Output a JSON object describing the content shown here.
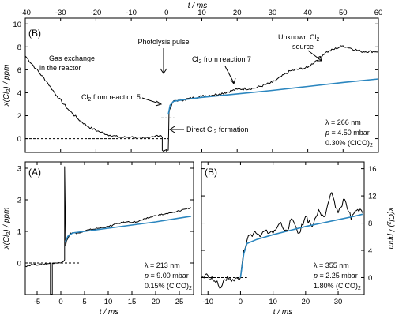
{
  "colors": {
    "measurement": "#000000",
    "fit": "#2b86bf"
  },
  "chart_data": [
    {
      "type": "line",
      "panel": "(B)",
      "xlabel": "t / ms",
      "ylabel": "x(Cl2) / ppm",
      "xlim": [
        -40,
        60
      ],
      "ylim": [
        -1.2,
        10.5
      ],
      "xticks": [
        -40,
        -30,
        -20,
        -10,
        0,
        10,
        20,
        30,
        40,
        50,
        60
      ],
      "yticks": [
        0,
        2,
        4,
        6,
        8,
        10
      ],
      "x_axis_position": "top",
      "conditions": [
        "λ = 266 nm",
        "p = 4.50 mbar",
        "0.30% (ClCO)2"
      ],
      "annotations": [
        "Photolysis pulse",
        "Gas exchange in the reactor",
        "Cl2 from reaction 5",
        "Cl2 from reaction 7",
        "Unknown Cl2 source",
        "Direct Cl2 formation"
      ],
      "series": [
        {
          "x": [
            -40,
            -37,
            -34,
            -31,
            -28,
            -25,
            -22,
            -19,
            -16,
            -13,
            -10,
            -7,
            -4,
            -2,
            -1.2,
            -1.2,
            0.5,
            0.7,
            1,
            2,
            5,
            10,
            15,
            20,
            25,
            30,
            35,
            40,
            45,
            50,
            55,
            60
          ],
          "values": [
            7.2,
            6.1,
            5.0,
            3.7,
            2.6,
            1.7,
            1.0,
            0.6,
            0.3,
            0.1,
            0.15,
            0.0,
            0.2,
            0.25,
            0.1,
            -1.0,
            -1.0,
            2.2,
            2.6,
            3.3,
            3.4,
            3.7,
            3.9,
            4.3,
            4.4,
            4.9,
            5.9,
            6.2,
            7.5,
            8.1,
            7.6,
            7.6
          ]
        },
        {
          "x": [
            0.5,
            1,
            2,
            5,
            10,
            20,
            30,
            40,
            50,
            60
          ],
          "values": [
            2.1,
            2.9,
            3.25,
            3.4,
            3.6,
            3.9,
            4.2,
            4.55,
            4.9,
            5.2
          ]
        }
      ],
      "reference_levels": [
        0,
        1.8
      ]
    },
    {
      "type": "line",
      "panel": "(A)",
      "xlabel": "t / ms",
      "ylabel": "x(Cl2) / ppm",
      "xlim": [
        -7.5,
        28
      ],
      "ylim": [
        -1.0,
        3.2
      ],
      "xticks": [
        -5,
        0,
        5,
        10,
        15,
        20,
        25
      ],
      "yticks": [
        0,
        1,
        2,
        3
      ],
      "conditions": [
        "λ = 213 nm",
        "p = 9.00 mbar",
        "0.15% (ClCO)2"
      ],
      "series": [
        {
          "x": [
            -7.5,
            -6,
            -4,
            -2.2,
            -2.2,
            -1.8,
            -1.8,
            -1,
            0,
            0.8,
            0.8,
            1.0,
            1.0,
            1.2,
            2,
            4,
            6,
            8,
            10,
            12,
            14,
            16,
            18,
            20,
            22,
            24,
            26,
            27.5
          ],
          "values": [
            -0.1,
            -0.05,
            -0.05,
            0.0,
            -1.0,
            -1.0,
            0.0,
            0.0,
            0.0,
            0.1,
            3.05,
            0.9,
            0.55,
            0.7,
            0.95,
            0.95,
            1.05,
            1.1,
            1.15,
            1.25,
            1.3,
            1.3,
            1.4,
            1.5,
            1.55,
            1.6,
            1.7,
            1.75
          ]
        },
        {
          "x": [
            0.9,
            1.5,
            2.5,
            5,
            10,
            15,
            20,
            25,
            27.5
          ],
          "values": [
            0.65,
            0.85,
            0.95,
            1.0,
            1.1,
            1.2,
            1.3,
            1.42,
            1.48
          ]
        }
      ],
      "reference_levels": [
        0
      ]
    },
    {
      "type": "line",
      "panel": "(B)",
      "xlabel": "t / ms",
      "ylabel": "x(Cl2) / ppm",
      "y_axis_position": "right",
      "xlim": [
        -12,
        38
      ],
      "ylim": [
        -2.5,
        17
      ],
      "xticks": [
        -10,
        0,
        10,
        20,
        30
      ],
      "yticks": [
        0,
        4,
        8,
        12,
        16
      ],
      "conditions": [
        "λ = 355 nm",
        "p = 2.25 mbar",
        "1.80% (ClCO)2"
      ],
      "series": [
        {
          "x": [
            -12,
            -10,
            -8,
            -6,
            -4,
            -2,
            0,
            1,
            2,
            4,
            6,
            8,
            10,
            12,
            14,
            16,
            18,
            20,
            22,
            24,
            26,
            28,
            30,
            32,
            34,
            36,
            37.5
          ],
          "values": [
            0,
            0.3,
            -0.5,
            -1.5,
            0.2,
            -0.5,
            0.0,
            4.0,
            5.5,
            6.5,
            6.0,
            7.0,
            6.5,
            8.0,
            7.0,
            8.5,
            6.5,
            9.0,
            7.5,
            10.0,
            9.0,
            12.5,
            9.5,
            11.5,
            8.5,
            10.0,
            9.5
          ]
        },
        {
          "x": [
            0,
            1,
            2,
            5,
            10,
            15,
            20,
            25,
            30,
            35,
            37.5
          ],
          "values": [
            0,
            3.5,
            5.0,
            5.6,
            6.3,
            6.9,
            7.5,
            8.0,
            8.5,
            9.0,
            9.3
          ]
        }
      ],
      "reference_levels": [
        0
      ]
    }
  ],
  "labels": {
    "top_xlabel": "t / ms",
    "bottom_xlabel_left": "t / ms",
    "bottom_xlabel_right": "t / ms",
    "panel_top": "(B)",
    "panel_bl": "(A)",
    "panel_br": "(B)",
    "ylabel_top": "x(Cl",
    "ylabel_sub": "2",
    "ylabel_tail": ") / ppm",
    "photolysis": "Photolysis pulse",
    "gas1": "Gas exchange",
    "gas2": "in the reactor",
    "unk1": "Unknown Cl",
    "unk_sub": "2",
    "unk2": "source",
    "r5a": "Cl",
    "r5sub": "2",
    "r5b": " from reaction 5",
    "r7a": "Cl",
    "r7sub": "2",
    "r7b": " from reaction 7",
    "direct_a": "Direct Cl",
    "direct_sub": "2",
    "direct_b": " formation",
    "top_c1": "λ = 266 nm",
    "top_c2p": "p",
    "top_c2": " = 4.50 mbar",
    "top_c3": "0.30% (ClCO)",
    "top_c3sub": "2",
    "bl_c1": "λ = 213 nm",
    "bl_c2p": "p",
    "bl_c2": " = 9.00 mbar",
    "bl_c3": "0.15% (ClCO)",
    "bl_c3sub": "2",
    "br_c1": "λ = 355 nm",
    "br_c2p": "p",
    "br_c2": " = 2.25 mbar",
    "br_c3": "1.80% (ClCO)",
    "br_c3sub": "2"
  }
}
